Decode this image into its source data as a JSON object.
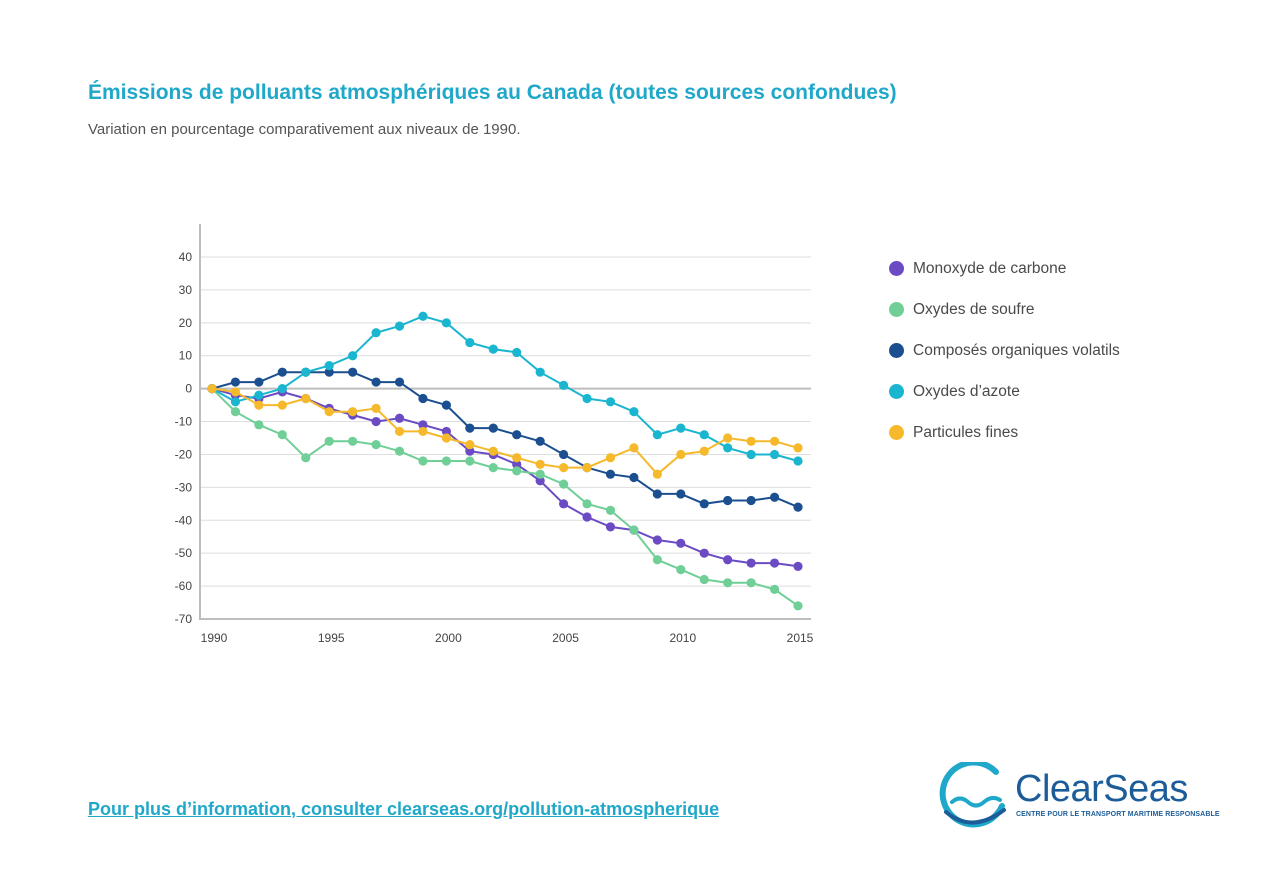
{
  "header": {
    "title": "Émissions de polluants atmosphériques au Canada (toutes sources confondues)",
    "subtitle": "Variation en pourcentage comparativement aux niveaux de 1990."
  },
  "footer": {
    "link_text": "Pour plus d’information, consulter clearseas.org/pollution-atmospherique"
  },
  "logo": {
    "name": "ClearSeas",
    "tagline": "CENTRE POUR LE TRANSPORT MARITIME RESPONSABLE",
    "icon": "wave-circle-icon"
  },
  "chart_data": {
    "type": "line",
    "title": "",
    "xlabel": "",
    "ylabel": "",
    "xlim": [
      1990,
      2015
    ],
    "ylim": [
      -70,
      40
    ],
    "grid": true,
    "legend_position": "right",
    "x": [
      1990,
      1991,
      1992,
      1993,
      1994,
      1995,
      1996,
      1997,
      1998,
      1999,
      2000,
      2001,
      2002,
      2003,
      2004,
      2005,
      2006,
      2007,
      2008,
      2009,
      2010,
      2011,
      2012,
      2013,
      2014,
      2015
    ],
    "x_ticks": [
      1990,
      1995,
      2000,
      2005,
      2010,
      2015
    ],
    "y_ticks": [
      40,
      30,
      20,
      10,
      0,
      -10,
      -20,
      -30,
      -40,
      -50,
      -60,
      -70
    ],
    "series": [
      {
        "name": "Monoxyde de carbone",
        "color": "#6a4bc4",
        "values": [
          0,
          -2,
          -3,
          -1,
          -3,
          -6,
          -8,
          -10,
          -9,
          -11,
          -13,
          -19,
          -20,
          -23,
          -28,
          -35,
          -39,
          -42,
          -43,
          -46,
          -47,
          -50,
          -52,
          -53,
          -53,
          -54
        ]
      },
      {
        "name": "Oxydes de soufre",
        "color": "#6fcf97",
        "values": [
          0,
          -7,
          -11,
          -14,
          -21,
          -16,
          -16,
          -17,
          -19,
          -22,
          -22,
          -22,
          -24,
          -25,
          -26,
          -29,
          -35,
          -37,
          -43,
          -52,
          -55,
          -58,
          -59,
          -59,
          -61,
          -66
        ]
      },
      {
        "name": "Composés organiques volatils",
        "color": "#1c4f8f",
        "values": [
          0,
          2,
          2,
          5,
          5,
          5,
          5,
          2,
          2,
          -3,
          -5,
          -12,
          -12,
          -14,
          -16,
          -20,
          -24,
          -26,
          -27,
          -32,
          -32,
          -35,
          -34,
          -34,
          -33,
          -36
        ]
      },
      {
        "name": "Oxydes d’azote",
        "color": "#1ab5cf",
        "values": [
          0,
          -4,
          -2,
          0,
          5,
          7,
          10,
          17,
          19,
          22,
          20,
          14,
          12,
          11,
          5,
          1,
          -3,
          -4,
          -7,
          -14,
          -12,
          -14,
          -18,
          -20,
          -20,
          -22
        ]
      },
      {
        "name": "Particules fines",
        "color": "#f6b92b",
        "values": [
          0,
          -1,
          -5,
          -5,
          -3,
          -7,
          -7,
          -6,
          -13,
          -13,
          -15,
          -17,
          -19,
          -21,
          -23,
          -24,
          -24,
          -21,
          -18,
          -26,
          -20,
          -19,
          -15,
          -16,
          -16,
          -18
        ]
      }
    ]
  }
}
